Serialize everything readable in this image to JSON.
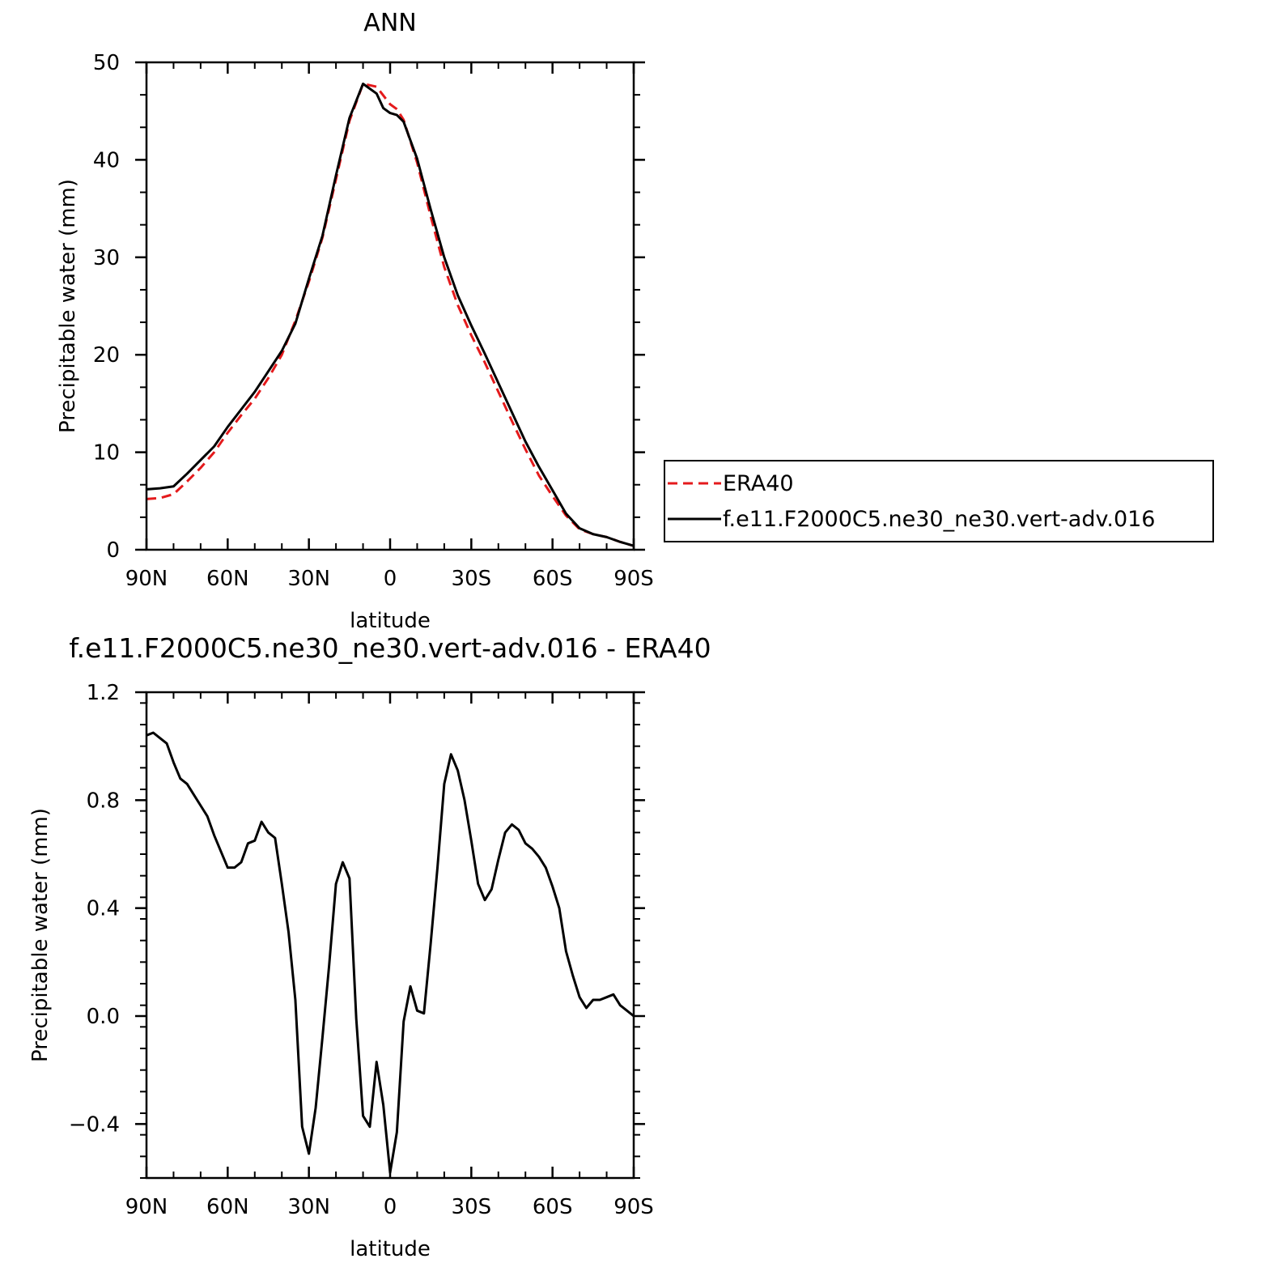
{
  "chart_data": [
    {
      "type": "line",
      "title": "ANN",
      "xlabel": "latitude",
      "ylabel": "Precipitable water (mm)",
      "xlim": [
        90,
        -90
      ],
      "ylim": [
        0,
        50
      ],
      "xticks": [
        90,
        60,
        30,
        0,
        -30,
        -60,
        -90
      ],
      "xtick_labels": [
        "90N",
        "60N",
        "30N",
        "0",
        "30S",
        "60S",
        "90S"
      ],
      "yticks": [
        0,
        10,
        20,
        30,
        40,
        50
      ],
      "ytick_labels": [
        "0",
        "10",
        "20",
        "30",
        "40",
        "50"
      ],
      "grid": false,
      "legend": "outside-right",
      "series": [
        {
          "name": "ERA40",
          "color": "#e41a1c",
          "dash": "dashed",
          "x": [
            90,
            85,
            80,
            75,
            70,
            65,
            60,
            55,
            50,
            45,
            40,
            35,
            30,
            25,
            20,
            15,
            10,
            5,
            2.5,
            0,
            -2.5,
            -5,
            -10,
            -15,
            -20,
            -25,
            -30,
            -35,
            -40,
            -45,
            -50,
            -55,
            -60,
            -65,
            -70,
            -75,
            -80,
            -85,
            -90
          ],
          "y": [
            5.2,
            5.3,
            5.7,
            7.0,
            8.4,
            10.0,
            12.0,
            13.8,
            15.5,
            17.6,
            20.0,
            23.5,
            27.5,
            32.0,
            38.0,
            44.0,
            47.8,
            47.5,
            46.6,
            45.7,
            45.2,
            44.1,
            39.7,
            34.2,
            29.0,
            25.1,
            22.0,
            19.2,
            16.2,
            13.2,
            10.3,
            7.6,
            5.5,
            3.5,
            2.1,
            1.6,
            1.3,
            0.8,
            0.4
          ]
        },
        {
          "name": "f.e11.F2000C5.ne30_ne30.vert-adv.016",
          "color": "#000000",
          "dash": "solid",
          "x": [
            90,
            85,
            80,
            75,
            70,
            65,
            60,
            55,
            50,
            45,
            40,
            35,
            30,
            25,
            20,
            15,
            10,
            5,
            2.5,
            0,
            -2.5,
            -5,
            -10,
            -15,
            -20,
            -25,
            -30,
            -35,
            -40,
            -45,
            -50,
            -55,
            -60,
            -65,
            -70,
            -75,
            -80,
            -85,
            -90
          ],
          "y": [
            6.2,
            6.3,
            6.5,
            7.8,
            9.2,
            10.6,
            12.6,
            14.4,
            16.2,
            18.3,
            20.4,
            23.2,
            27.8,
            32.2,
            38.4,
            44.3,
            47.8,
            46.8,
            45.3,
            44.8,
            44.6,
            43.9,
            40.1,
            34.9,
            30.0,
            26.1,
            23.0,
            20.1,
            17.1,
            14.1,
            11.1,
            8.5,
            6.1,
            3.7,
            2.2,
            1.6,
            1.3,
            0.8,
            0.4
          ]
        }
      ]
    },
    {
      "type": "line",
      "title": "f.e11.F2000C5.ne30_ne30.vert-adv.016 - ERA40",
      "xlabel": "latitude",
      "ylabel": "Precipitable water (mm)",
      "xlim": [
        90,
        -90
      ],
      "ylim": [
        -0.6,
        1.2
      ],
      "xticks": [
        90,
        60,
        30,
        0,
        -30,
        -60,
        -90
      ],
      "xtick_labels": [
        "90N",
        "60N",
        "30N",
        "0",
        "30S",
        "60S",
        "90S"
      ],
      "yticks": [
        -0.4,
        0.0,
        0.4,
        0.8,
        1.2
      ],
      "ytick_labels": [
        "-0.4",
        "0.0",
        "0.4",
        "0.8",
        "1.2"
      ],
      "grid": false,
      "series": [
        {
          "color": "#000000",
          "dash": "solid",
          "x": [
            90,
            87.5,
            85,
            82.5,
            80,
            77.5,
            75,
            72.5,
            70,
            67.5,
            65,
            62.5,
            60,
            57.5,
            55,
            52.5,
            50,
            47.5,
            45,
            42.5,
            40,
            37.5,
            35,
            32.5,
            30,
            27.5,
            25,
            22.5,
            20,
            17.5,
            15,
            12.5,
            10,
            7.5,
            5,
            2.5,
            0,
            -2.5,
            -5,
            -7.5,
            -10,
            -12.5,
            -15,
            -17.5,
            -20,
            -22.5,
            -25,
            -27.5,
            -30,
            -32.5,
            -35,
            -37.5,
            -40,
            -42.5,
            -45,
            -47.5,
            -50,
            -52.5,
            -55,
            -57.5,
            -60,
            -62.5,
            -65,
            -67.5,
            -70,
            -72.5,
            -75,
            -77.5,
            -80,
            -82.5,
            -85,
            -87.5,
            -90
          ],
          "y": [
            1.04,
            1.05,
            1.03,
            1.01,
            0.94,
            0.88,
            0.86,
            0.82,
            0.78,
            0.74,
            0.67,
            0.61,
            0.55,
            0.55,
            0.57,
            0.64,
            0.65,
            0.72,
            0.68,
            0.66,
            0.49,
            0.31,
            0.06,
            -0.41,
            -0.51,
            -0.34,
            -0.08,
            0.19,
            0.49,
            0.57,
            0.51,
            -0.01,
            -0.37,
            -0.41,
            -0.17,
            -0.33,
            -0.58,
            -0.43,
            -0.02,
            0.11,
            0.02,
            0.01,
            0.27,
            0.55,
            0.86,
            0.97,
            0.91,
            0.8,
            0.65,
            0.49,
            0.43,
            0.47,
            0.58,
            0.68,
            0.71,
            0.69,
            0.64,
            0.62,
            0.59,
            0.55,
            0.48,
            0.4,
            0.24,
            0.15,
            0.07,
            0.03,
            0.06,
            0.06,
            0.07,
            0.08,
            0.04,
            0.02,
            0.0
          ]
        }
      ]
    }
  ]
}
